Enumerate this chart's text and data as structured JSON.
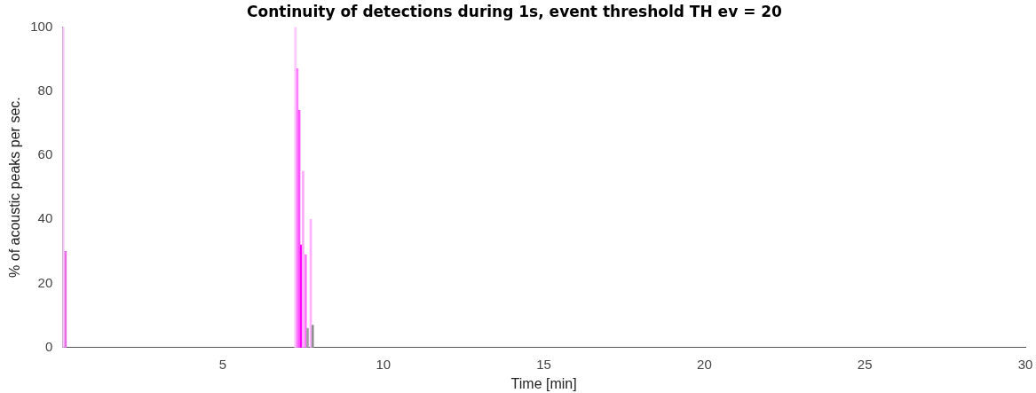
{
  "chart_data": {
    "type": "bar",
    "title": "Continuity of detections during 1s, event threshold TH ev = 20",
    "xlabel": "Time [min]",
    "ylabel": "% of acoustic peaks per sec.",
    "x": [
      0.03,
      0.1,
      7.26,
      7.32,
      7.38,
      7.44,
      7.5,
      7.58,
      7.64,
      7.74,
      7.8
    ],
    "values": [
      100,
      30,
      100,
      87,
      74,
      32,
      55,
      29,
      6,
      40,
      7
    ],
    "colors": [
      "#f4c8f4",
      "#e86ee8",
      "#ffc8ff",
      "#ff80ff",
      "#ff55ff",
      "#ff00ff",
      "#ffaaff",
      "#ff77ff",
      "#a0a0a0",
      "#ffb0ff",
      "#909090"
    ],
    "xlim": [
      0,
      30
    ],
    "xticks": [
      5,
      10,
      15,
      20,
      25,
      30
    ],
    "ylim": [
      0,
      100
    ],
    "yticks": [
      0,
      20,
      40,
      60,
      80,
      100
    ],
    "grid": false
  }
}
